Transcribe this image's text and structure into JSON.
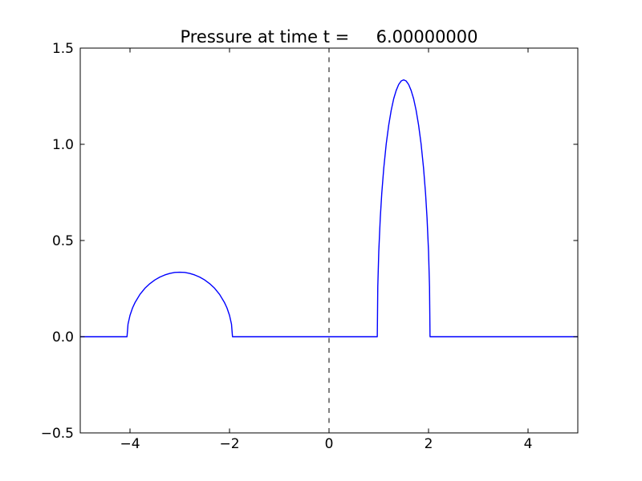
{
  "figure": {
    "background": "#ffffff",
    "text_color": "#000000"
  },
  "chart_data": {
    "type": "line",
    "title": "Pressure at time t =     6.00000000",
    "xlabel": "",
    "ylabel": "",
    "xlim": [
      -5,
      5
    ],
    "ylim": [
      -0.5,
      1.5
    ],
    "grid": false,
    "legend": "none",
    "tick_direction": "in",
    "tick_sides": [
      "bottom",
      "top",
      "left",
      "right"
    ],
    "axes_color": "#000000",
    "x_ticks": [
      -4,
      -2,
      0,
      2,
      4
    ],
    "x_tick_labels": [
      "−4",
      "−2",
      "0",
      "2",
      "4"
    ],
    "y_ticks": [
      -0.5,
      0.0,
      0.5,
      1.0,
      1.5
    ],
    "y_tick_labels": [
      "−0.5",
      "0.0",
      "0.5",
      "1.0",
      "1.5"
    ],
    "series": [
      {
        "name": "interface-line",
        "color": "#000000",
        "style": "dashed",
        "line_width": 1,
        "points": [
          [
            0,
            -0.5
          ],
          [
            0,
            1.5
          ]
        ]
      },
      {
        "name": "pressure",
        "color": "#0000ff",
        "style": "solid",
        "line_width": 1.4,
        "points": [
          [
            -5.0,
            0
          ],
          [
            -4.06,
            0
          ],
          [
            -4.04,
            0.065
          ],
          [
            -4.0,
            0.111
          ],
          [
            -3.95,
            0.149
          ],
          [
            -3.9,
            0.177
          ],
          [
            -3.8,
            0.22
          ],
          [
            -3.7,
            0.252
          ],
          [
            -3.6,
            0.276
          ],
          [
            -3.5,
            0.295
          ],
          [
            -3.4,
            0.31
          ],
          [
            -3.3,
            0.321
          ],
          [
            -3.2,
            0.329
          ],
          [
            -3.1,
            0.334
          ],
          [
            -3.0,
            0.335
          ],
          [
            -2.9,
            0.334
          ],
          [
            -2.8,
            0.329
          ],
          [
            -2.7,
            0.321
          ],
          [
            -2.6,
            0.31
          ],
          [
            -2.5,
            0.295
          ],
          [
            -2.4,
            0.276
          ],
          [
            -2.3,
            0.252
          ],
          [
            -2.2,
            0.22
          ],
          [
            -2.1,
            0.177
          ],
          [
            -2.05,
            0.149
          ],
          [
            -2.0,
            0.111
          ],
          [
            -1.96,
            0.065
          ],
          [
            -1.94,
            0
          ],
          [
            0.97,
            0
          ],
          [
            0.98,
            0.259
          ],
          [
            1.0,
            0.443
          ],
          [
            1.03,
            0.617
          ],
          [
            1.06,
            0.745
          ],
          [
            1.1,
            0.876
          ],
          [
            1.15,
            1.003
          ],
          [
            1.2,
            1.1
          ],
          [
            1.25,
            1.177
          ],
          [
            1.3,
            1.237
          ],
          [
            1.35,
            1.28
          ],
          [
            1.4,
            1.311
          ],
          [
            1.45,
            1.329
          ],
          [
            1.5,
            1.335
          ],
          [
            1.55,
            1.329
          ],
          [
            1.6,
            1.311
          ],
          [
            1.65,
            1.28
          ],
          [
            1.7,
            1.237
          ],
          [
            1.75,
            1.177
          ],
          [
            1.8,
            1.1
          ],
          [
            1.85,
            1.003
          ],
          [
            1.9,
            0.876
          ],
          [
            1.94,
            0.745
          ],
          [
            1.97,
            0.617
          ],
          [
            2.0,
            0.443
          ],
          [
            2.02,
            0.259
          ],
          [
            2.03,
            0
          ],
          [
            5.0,
            0
          ]
        ]
      }
    ]
  }
}
